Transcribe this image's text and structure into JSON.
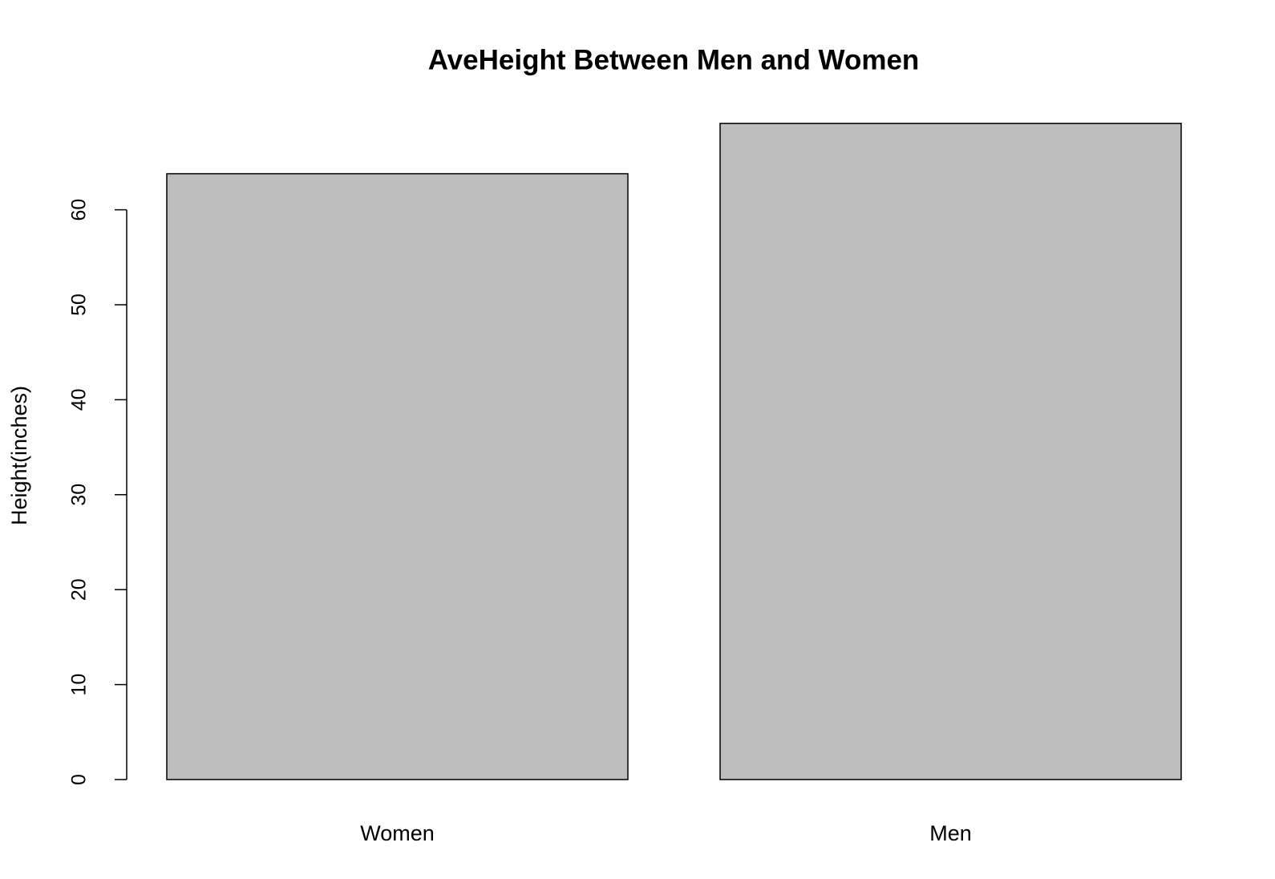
{
  "chart_data": {
    "type": "bar",
    "title": "AveHeight Between Men and Women",
    "y_label": "Height(inches)",
    "categories": [
      "Women",
      "Men"
    ],
    "values": [
      63.8,
      69.1
    ],
    "color": "#bebebe",
    "ylim": [
      0,
      70
    ],
    "yticks": [
      0,
      10,
      20,
      30,
      40,
      50,
      60
    ]
  }
}
